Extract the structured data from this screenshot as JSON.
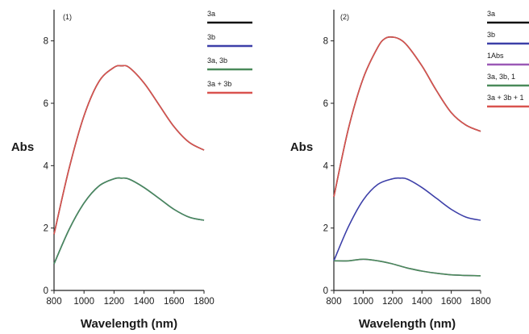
{
  "chart_data": [
    {
      "type": "line",
      "panel_label": "(1)",
      "xlabel": "Wavelength (nm)",
      "ylabel": "Abs",
      "xlim": [
        800,
        1800
      ],
      "ylim": [
        0,
        9
      ],
      "xticks": [
        800,
        1000,
        1200,
        1400,
        1600,
        1800
      ],
      "yticks": [
        0,
        2,
        4,
        6,
        8
      ],
      "grid": false,
      "legend_position": "right",
      "series": [
        {
          "name": "3a",
          "color": "#111111",
          "x": [
            800,
            900,
            1000,
            1100,
            1200,
            1250,
            1300,
            1400,
            1500,
            1600,
            1700,
            1800
          ],
          "y": [
            1.8,
            3.9,
            5.6,
            6.7,
            7.15,
            7.2,
            7.15,
            6.65,
            5.95,
            5.25,
            4.75,
            4.5
          ]
        },
        {
          "name": "3b",
          "color": "#3c3fa8",
          "x": [
            800,
            900,
            1000,
            1100,
            1200,
            1250,
            1300,
            1400,
            1500,
            1600,
            1700,
            1800
          ],
          "y": [
            0.85,
            1.95,
            2.8,
            3.35,
            3.58,
            3.6,
            3.57,
            3.3,
            2.95,
            2.6,
            2.35,
            2.25
          ]
        },
        {
          "name": "3a, 3b",
          "color": "#4a8a5a",
          "x": [
            800,
            900,
            1000,
            1100,
            1200,
            1250,
            1300,
            1400,
            1500,
            1600,
            1700,
            1800
          ],
          "y": [
            0.85,
            1.95,
            2.8,
            3.35,
            3.58,
            3.6,
            3.57,
            3.3,
            2.95,
            2.6,
            2.35,
            2.25
          ]
        },
        {
          "name": "3a + 3b",
          "color": "#d9534f",
          "x": [
            800,
            900,
            1000,
            1100,
            1200,
            1250,
            1300,
            1400,
            1500,
            1600,
            1700,
            1800
          ],
          "y": [
            1.8,
            3.9,
            5.6,
            6.7,
            7.15,
            7.2,
            7.15,
            6.65,
            5.95,
            5.25,
            4.75,
            4.5
          ]
        }
      ]
    },
    {
      "type": "line",
      "panel_label": "(2)",
      "xlabel": "Wavelength (nm)",
      "ylabel": "Abs",
      "xlim": [
        800,
        1800
      ],
      "ylim": [
        0,
        9
      ],
      "xticks": [
        800,
        1000,
        1200,
        1400,
        1600,
        1800
      ],
      "yticks": [
        0,
        2,
        4,
        6,
        8
      ],
      "grid": false,
      "legend_position": "right",
      "series": [
        {
          "name": "3a",
          "color": "#111111",
          "x": [
            800,
            900,
            1000,
            1100,
            1150,
            1200,
            1250,
            1300,
            1400,
            1500,
            1600,
            1700,
            1800
          ],
          "y": [
            3.0,
            5.2,
            6.8,
            7.8,
            8.08,
            8.12,
            8.05,
            7.85,
            7.2,
            6.4,
            5.7,
            5.3,
            5.1
          ]
        },
        {
          "name": "3b",
          "color": "#3c3fa8",
          "x": [
            800,
            900,
            1000,
            1100,
            1200,
            1250,
            1300,
            1400,
            1500,
            1600,
            1700,
            1800
          ],
          "y": [
            0.95,
            2.05,
            2.9,
            3.4,
            3.58,
            3.6,
            3.57,
            3.3,
            2.95,
            2.6,
            2.35,
            2.25
          ]
        },
        {
          "name": "1Abs",
          "color": "#9b59b6",
          "x": [
            800,
            900,
            1000,
            1100,
            1200,
            1300,
            1400,
            1500,
            1600,
            1700,
            1800
          ],
          "y": [
            0.95,
            0.95,
            1.0,
            0.95,
            0.85,
            0.72,
            0.62,
            0.55,
            0.5,
            0.48,
            0.47
          ]
        },
        {
          "name": "3a, 3b, 1",
          "color": "#4a8a5a",
          "x": [
            800,
            900,
            1000,
            1100,
            1200,
            1300,
            1400,
            1500,
            1600,
            1700,
            1800
          ],
          "y": [
            0.95,
            0.95,
            1.0,
            0.95,
            0.85,
            0.72,
            0.62,
            0.55,
            0.5,
            0.48,
            0.47
          ]
        },
        {
          "name": "3a + 3b + 1",
          "color": "#d9534f",
          "x": [
            800,
            900,
            1000,
            1100,
            1150,
            1200,
            1250,
            1300,
            1400,
            1500,
            1600,
            1700,
            1800
          ],
          "y": [
            3.0,
            5.2,
            6.8,
            7.8,
            8.08,
            8.12,
            8.05,
            7.85,
            7.2,
            6.4,
            5.7,
            5.3,
            5.1
          ]
        }
      ]
    }
  ]
}
